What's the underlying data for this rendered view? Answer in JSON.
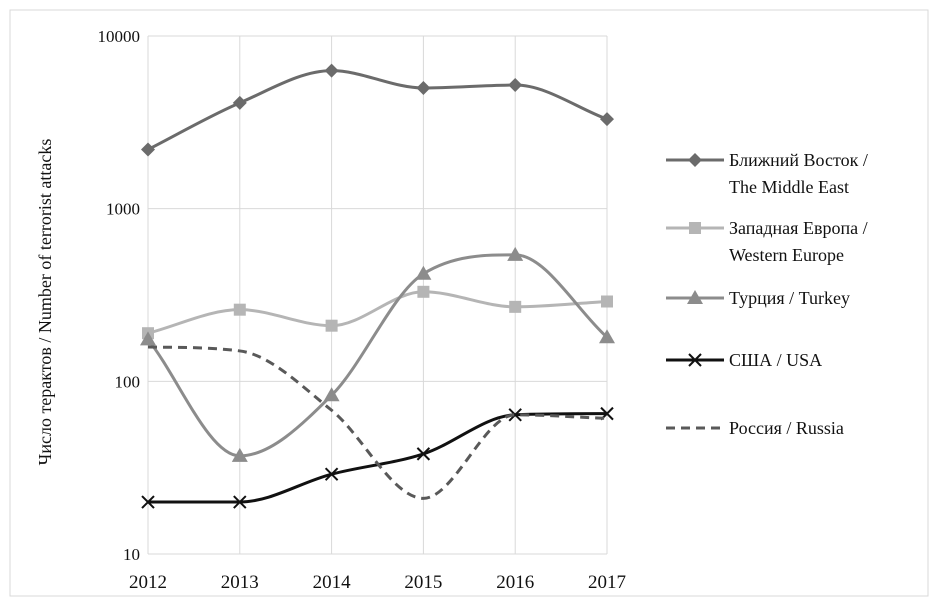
{
  "chart_data": {
    "type": "line",
    "yscale": "log",
    "ylim": [
      10,
      10000
    ],
    "grid": true,
    "legend_position": "right",
    "ylabel": "Число терактов / Number of terrorist attacks",
    "xlabel": "",
    "x": [
      "2012",
      "2013",
      "2014",
      "2015",
      "2016",
      "2017"
    ],
    "y_ticks": [
      "10",
      "100",
      "1000",
      "10000"
    ],
    "series": [
      {
        "name": "Ближний Восток / The Middle East",
        "legend_lines": [
          "Ближний Восток /",
          "The Middle East"
        ],
        "values": [
          2200,
          4100,
          6300,
          5000,
          5200,
          3300
        ],
        "color": "#6b6b6b",
        "marker": "diamond",
        "dash": "solid",
        "width": 3
      },
      {
        "name": "Западная Европа / Western Europe",
        "legend_lines": [
          "Западная Европа /",
          "Western Europe"
        ],
        "values": [
          190,
          260,
          210,
          330,
          270,
          290
        ],
        "color": "#b5b5b5",
        "marker": "square",
        "dash": "solid",
        "width": 3
      },
      {
        "name": "Турция / Turkey",
        "legend_lines": [
          "Турция / Turkey"
        ],
        "values": [
          175,
          37,
          83,
          420,
          540,
          180
        ],
        "color": "#8c8c8c",
        "marker": "triangle",
        "dash": "solid",
        "width": 3
      },
      {
        "name": "США / USA",
        "legend_lines": [
          "США / USA"
        ],
        "values": [
          20,
          20,
          29,
          38,
          64,
          65
        ],
        "color": "#111111",
        "marker": "x",
        "dash": "solid",
        "width": 3
      },
      {
        "name": "Россия / Russia",
        "legend_lines": [
          "Россия / Russia"
        ],
        "values": [
          158,
          150,
          68,
          21,
          64,
          61
        ],
        "color": "#595959",
        "marker": "none",
        "dash": "dashed",
        "width": 3
      }
    ]
  }
}
